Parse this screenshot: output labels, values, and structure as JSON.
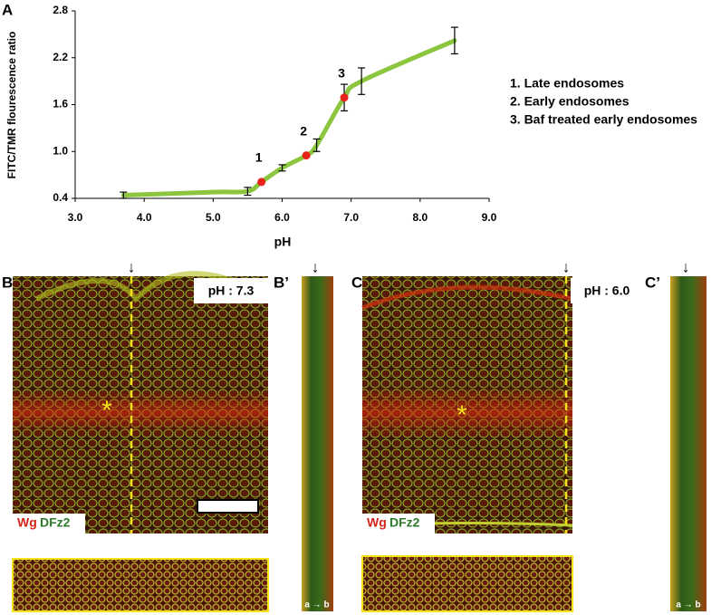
{
  "chart_data": {
    "type": "line",
    "panel_label": "A",
    "y_label": "FITC/TMR flourescence ratio",
    "x_label": "pH",
    "x": [
      3.7,
      5.0,
      5.5,
      5.7,
      6.0,
      6.35,
      6.5,
      6.9,
      7.15,
      8.5
    ],
    "values": [
      0.44,
      0.48,
      0.49,
      0.61,
      0.79,
      0.95,
      1.08,
      1.69,
      1.9,
      2.42
    ],
    "errors": [
      0.04,
      null,
      0.05,
      null,
      0.04,
      null,
      0.08,
      0.17,
      0.17,
      0.17
    ],
    "color": "#8cc63f",
    "markers": {
      "color": "#e8231c",
      "x": [
        5.7,
        6.35,
        6.9
      ],
      "values": [
        0.61,
        0.95,
        1.69
      ],
      "labels": [
        "1",
        "2",
        "3"
      ]
    },
    "annotations": [
      "1. Late endosomes",
      "2. Early endosomes",
      "3. Baf treated early endosomes"
    ],
    "xlim": [
      3,
      9
    ],
    "ylim": [
      0.4,
      2.8
    ],
    "xticks": [
      {
        "value": 3,
        "label": "3.0"
      },
      {
        "value": 4,
        "label": "4.0"
      },
      {
        "value": 5,
        "label": "5.0"
      },
      {
        "value": 6,
        "label": "6.0"
      },
      {
        "value": 7,
        "label": "7.0"
      },
      {
        "value": 8,
        "label": "8.0"
      },
      {
        "value": 9,
        "label": "9.0"
      }
    ],
    "yticks": [
      0.4,
      {
        "value": 1,
        "label": "1.0"
      },
      1.6,
      2.2,
      2.8
    ]
  },
  "panels": {
    "b": {
      "label": "B",
      "ph": "pH : 7.3",
      "marker": "*",
      "arrow": "↓",
      "stain_red": "Wg",
      "stain_green": "DFz2"
    },
    "b_prime": {
      "label": "B’",
      "arrow": "↓",
      "axis": "a → b"
    },
    "c": {
      "label": "C",
      "ph": "pH : 6.0",
      "marker": "*",
      "arrow": "↓",
      "stain_red": "Wg",
      "stain_green": "DFz2"
    },
    "c_prime": {
      "label": "C’",
      "arrow": "↓",
      "axis": "a → b"
    }
  }
}
